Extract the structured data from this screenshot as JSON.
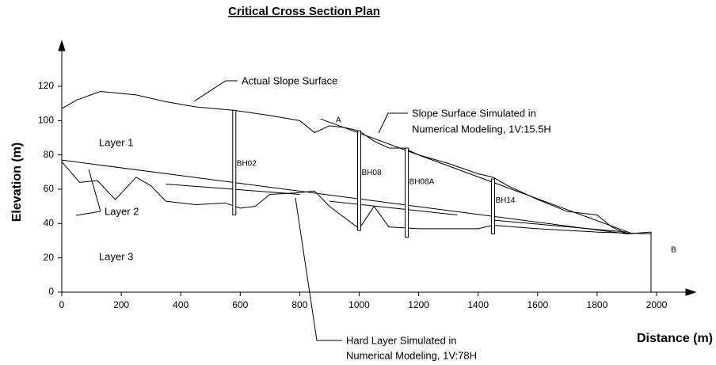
{
  "chart_data": {
    "type": "line",
    "title": "Critical Cross Section Plan",
    "xlabel": "Distance (m)",
    "ylabel": "Elevation (m)",
    "xlim": [
      0,
      2000
    ],
    "ylim": [
      0,
      120
    ],
    "xticks": [
      0,
      200,
      400,
      600,
      800,
      1000,
      1200,
      1400,
      1600,
      1800,
      2000
    ],
    "yticks": [
      0,
      20,
      40,
      60,
      80,
      100,
      120
    ],
    "series": [
      {
        "name": "Actual Slope Surface",
        "color": "#000000",
        "x": [
          0,
          50,
          130,
          250,
          350,
          450,
          580,
          700,
          800,
          850,
          900,
          950,
          1000,
          1050,
          1100,
          1150,
          1200,
          1300,
          1400,
          1450,
          1500,
          1600,
          1700,
          1800,
          1850,
          1900,
          1980
        ],
        "values": [
          107,
          112,
          117,
          115,
          111,
          108,
          106,
          103,
          100,
          93,
          97,
          96,
          94,
          88,
          84,
          84,
          80,
          75,
          69,
          67,
          62,
          54,
          47,
          45,
          38,
          34,
          35
        ]
      },
      {
        "name": "Slope Surface Simulated in Numerical Modeling, 1V:15.5H",
        "color": "#000000",
        "x": [
          870,
          1920
        ],
        "values": [
          101,
          34
        ]
      },
      {
        "name": "Hard Layer Simulated in Numerical Modeling, 1V:78H",
        "color": "#000000",
        "x": [
          350,
          800,
          null,
          900,
          1330,
          null,
          1450,
          1900
        ],
        "values": [
          63,
          57,
          null,
          53,
          45,
          null,
          42,
          35
        ]
      },
      {
        "name": "Layer 2",
        "color": "#000000",
        "x": [
          0,
          1900
        ],
        "values": [
          77,
          34
        ]
      },
      {
        "name": "Layer 3",
        "color": "#000000",
        "x": [
          0,
          60,
          120,
          180,
          250,
          300,
          350,
          450,
          550,
          600,
          650,
          700,
          800,
          850,
          900,
          1000,
          1050,
          1100,
          1200,
          1400,
          1450,
          1600,
          1800,
          1980
        ],
        "values": [
          76,
          64,
          65,
          54,
          67,
          62,
          53,
          51,
          52,
          49,
          50,
          57,
          58,
          59,
          50,
          37,
          50,
          38,
          37,
          37,
          39,
          37,
          35,
          34
        ]
      }
    ],
    "boreholes": [
      {
        "name": "BH02",
        "x": 580,
        "top": 106,
        "bottom": 45
      },
      {
        "name": "BH08",
        "x": 1000,
        "top": 94,
        "bottom": 36
      },
      {
        "name": "BH08A",
        "x": 1160,
        "top": 84,
        "bottom": 32
      },
      {
        "name": "BH14",
        "x": 1450,
        "top": 66,
        "bottom": 34
      }
    ],
    "annotations": [
      "Actual Slope Surface",
      "Slope Surface Simulated in",
      "Numerical Modeling, 1V:15.5H",
      "Layer 1",
      "Layer 2",
      "Layer 3",
      "Hard Layer Simulated in",
      "Numerical Modeling, 1V:78H",
      "A",
      "B"
    ]
  }
}
